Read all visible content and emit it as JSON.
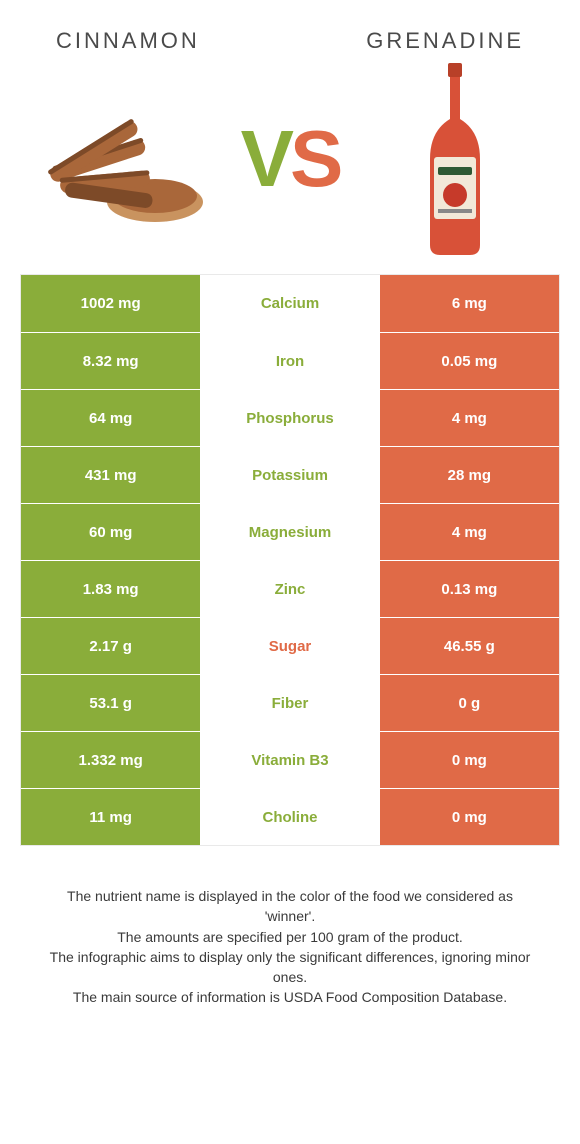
{
  "colors": {
    "green": "#8aad3a",
    "orange": "#e06a47",
    "cinnamon_stick": "#a9673a",
    "cinnamon_stick_dark": "#7d4a28",
    "cinnamon_powder": "#c9935f",
    "bottle_body": "#d85138",
    "bottle_cap": "#b84028",
    "bottle_label": "#f2e9d8"
  },
  "header": {
    "left": "CINNAMON",
    "right": "GRENADINE"
  },
  "vs": {
    "v": "V",
    "s": "S"
  },
  "rows": [
    {
      "left": "1002 mg",
      "label": "Calcium",
      "right": "6 mg",
      "winner": "left"
    },
    {
      "left": "8.32 mg",
      "label": "Iron",
      "right": "0.05 mg",
      "winner": "left"
    },
    {
      "left": "64 mg",
      "label": "Phosphorus",
      "right": "4 mg",
      "winner": "left"
    },
    {
      "left": "431 mg",
      "label": "Potassium",
      "right": "28 mg",
      "winner": "left"
    },
    {
      "left": "60 mg",
      "label": "Magnesium",
      "right": "4 mg",
      "winner": "left"
    },
    {
      "left": "1.83 mg",
      "label": "Zinc",
      "right": "0.13 mg",
      "winner": "left"
    },
    {
      "left": "2.17 g",
      "label": "Sugar",
      "right": "46.55 g",
      "winner": "right"
    },
    {
      "left": "53.1 g",
      "label": "Fiber",
      "right": "0 g",
      "winner": "left"
    },
    {
      "left": "1.332 mg",
      "label": "Vitamin B3",
      "right": "0 mg",
      "winner": "left"
    },
    {
      "left": "11 mg",
      "label": "Choline",
      "right": "0 mg",
      "winner": "left"
    }
  ],
  "footer": {
    "l1": "The nutrient name is displayed in the color of the food we considered as 'winner'.",
    "l2": "The amounts are specified per 100 gram of the product.",
    "l3": "The infographic aims to display only the significant differences, ignoring minor ones.",
    "l4": "The main source of information is USDA Food Composition Database."
  }
}
